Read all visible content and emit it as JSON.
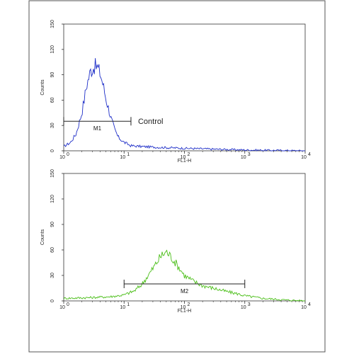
{
  "chart_data": [
    {
      "type": "line",
      "panel": "top",
      "xlabel": "FL1-H",
      "ylabel": "Counts",
      "xscale": "log",
      "xlim": [
        1,
        10000
      ],
      "ylim": [
        0,
        150
      ],
      "x_ticks": [
        "10",
        "10",
        "10",
        "10",
        "10"
      ],
      "x_tick_exponents": [
        "0",
        "1",
        "2",
        "3",
        "4"
      ],
      "y_ticks": [
        "0",
        "30",
        "60",
        "90",
        "120",
        "150"
      ],
      "color": "#1f2fc8",
      "annotation": "Control",
      "gate": {
        "label": "M1",
        "x_start": 1,
        "x_end": 13
      },
      "series": [
        {
          "x": [
            1,
            1.3,
            1.6,
            2,
            2.4,
            2.8,
            3.2,
            3.6,
            4,
            4.5,
            5,
            6,
            7,
            8,
            10,
            13,
            20,
            40,
            100,
            300,
            1000,
            10000
          ],
          "y": [
            5,
            10,
            20,
            45,
            78,
            95,
            100,
            99,
            92,
            78,
            62,
            40,
            25,
            16,
            10,
            6,
            5,
            4,
            3,
            2,
            1,
            0
          ]
        }
      ]
    },
    {
      "type": "line",
      "panel": "bottom",
      "xlabel": "FL1-H",
      "ylabel": "Counts",
      "xscale": "log",
      "xlim": [
        1,
        10000
      ],
      "ylim": [
        0,
        150
      ],
      "x_ticks": [
        "10",
        "10",
        "10",
        "10",
        "10"
      ],
      "x_tick_exponents": [
        "0",
        "1",
        "2",
        "3",
        "4"
      ],
      "y_ticks": [
        "0",
        "30",
        "60",
        "90",
        "120",
        "150"
      ],
      "color": "#4cbf1a",
      "gate": {
        "label": "M2",
        "x_start": 10,
        "x_end": 1000
      },
      "series": [
        {
          "x": [
            1,
            3,
            6,
            10,
            15,
            20,
            30,
            40,
            50,
            60,
            80,
            100,
            150,
            200,
            300,
            500,
            800,
            1000,
            2000,
            5000,
            10000
          ],
          "y": [
            3,
            4,
            5,
            7,
            12,
            20,
            38,
            52,
            58,
            52,
            40,
            30,
            22,
            18,
            15,
            11,
            8,
            6,
            3,
            1,
            0
          ]
        }
      ]
    }
  ]
}
